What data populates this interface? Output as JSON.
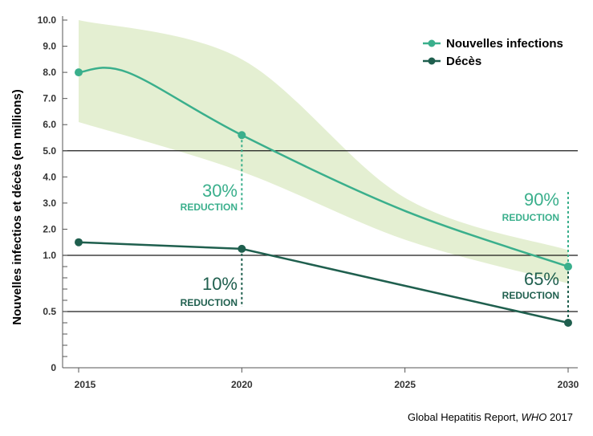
{
  "chart_data": {
    "type": "line",
    "ylabel": "Nouvelles infectios et décès (en millions)",
    "x_ticks": [
      "2015",
      "2020",
      "2025",
      "2030"
    ],
    "y_ticks": [
      "0",
      "0.5",
      "1.0",
      "2.0",
      "3.0",
      "4.0",
      "5.0",
      "6.0",
      "7.0",
      "8.0",
      "9.0",
      "10.0"
    ],
    "gridlines_at": [
      0.5,
      1.0,
      5.0
    ],
    "series": [
      {
        "name": "Nouvelles infections",
        "color": "#3aaf8c",
        "x": [
          2015,
          2020,
          2030
        ],
        "values": [
          8.0,
          5.6,
          0.9
        ],
        "band": {
          "color": "#e4efd2",
          "x": [
            2015,
            2020,
            2025,
            2030
          ],
          "upper": [
            10.0,
            8.5,
            3.2,
            1.2
          ],
          "lower": [
            6.1,
            4.2,
            1.6,
            0.75
          ]
        }
      },
      {
        "name": "Décès",
        "color": "#1f5f4e",
        "x": [
          2015,
          2020,
          2030
        ],
        "values": [
          1.5,
          1.25,
          0.4
        ]
      }
    ],
    "legend_position": "top-right",
    "annotations": [
      {
        "percent": "30%",
        "label": "REDUCTION",
        "color": "#3aaf8c"
      },
      {
        "percent": "90%",
        "label": "REDUCTION",
        "color": "#3aaf8c"
      },
      {
        "percent": "10%",
        "label": "REDUCTION",
        "color": "#1f5f4e"
      },
      {
        "percent": "65%",
        "label": "REDUCTION",
        "color": "#1f5f4e"
      }
    ]
  },
  "source": {
    "prefix": "Global Hepatitis Report, ",
    "italic": "WHO",
    "suffix": " 2017"
  }
}
